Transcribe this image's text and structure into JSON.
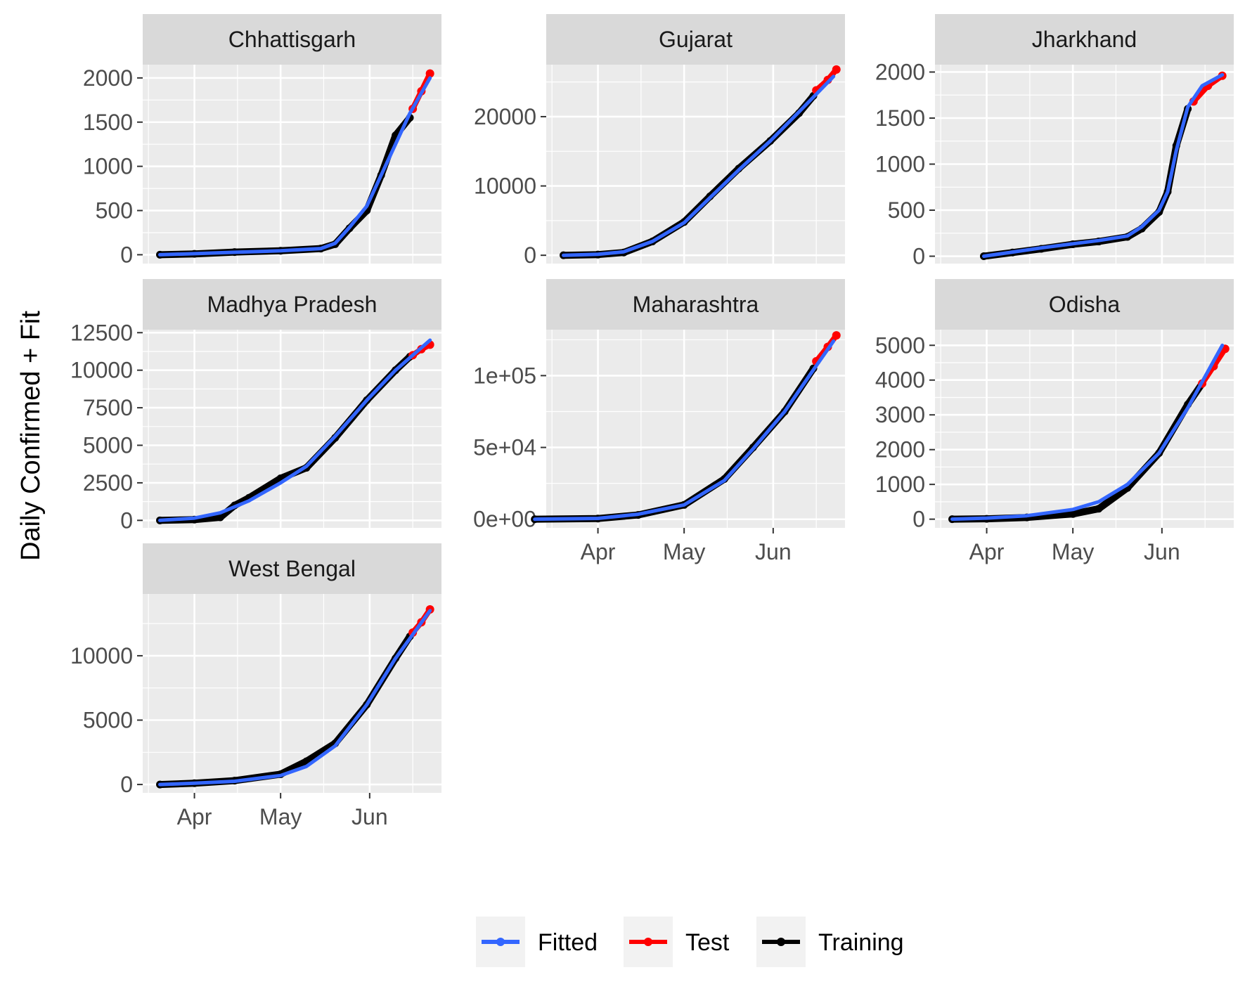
{
  "chart_data": {
    "type": "line",
    "ylabel": "Daily Confirmed + Fit",
    "xlabel": "",
    "x_axis": "date",
    "x_ticks": [
      "Apr",
      "May",
      "Jun"
    ],
    "x_range": [
      "2020-03-14",
      "2020-06-26"
    ],
    "legend": {
      "placement": "bottom",
      "entries": [
        {
          "name": "Fitted",
          "color": "#3366FF"
        },
        {
          "name": "Test",
          "color": "#FF0000"
        },
        {
          "name": "Training",
          "color": "#000000"
        }
      ]
    },
    "panels": [
      {
        "title": "Chhattisgarh",
        "ylim": [
          -100,
          2150
        ],
        "yticks": [
          0,
          500,
          1000,
          1500,
          2000
        ],
        "ytick_labels": [
          "0",
          "500",
          "1000",
          "1500",
          "2000"
        ],
        "training": [
          [
            "2020-03-20",
            0
          ],
          [
            "2020-04-01",
            10
          ],
          [
            "2020-04-15",
            30
          ],
          [
            "2020-05-01",
            45
          ],
          [
            "2020-05-15",
            70
          ],
          [
            "2020-05-20",
            120
          ],
          [
            "2020-05-25",
            300
          ],
          [
            "2020-05-31",
            500
          ],
          [
            "2020-06-05",
            900
          ],
          [
            "2020-06-10",
            1350
          ],
          [
            "2020-06-15",
            1550
          ]
        ],
        "test": [
          [
            "2020-06-16",
            1650
          ],
          [
            "2020-06-19",
            1850
          ],
          [
            "2020-06-22",
            2050
          ]
        ],
        "fitted": [
          [
            "2020-03-20",
            0
          ],
          [
            "2020-04-01",
            12
          ],
          [
            "2020-04-15",
            28
          ],
          [
            "2020-05-01",
            45
          ],
          [
            "2020-05-15",
            70
          ],
          [
            "2020-05-20",
            130
          ],
          [
            "2020-05-25",
            310
          ],
          [
            "2020-05-31",
            550
          ],
          [
            "2020-06-05",
            900
          ],
          [
            "2020-06-10",
            1250
          ],
          [
            "2020-06-15",
            1600
          ],
          [
            "2020-06-22",
            2000
          ]
        ]
      },
      {
        "title": "Gujarat",
        "ylim": [
          -1200,
          27500
        ],
        "yticks": [
          0,
          10000,
          20000
        ],
        "ytick_labels": [
          "0",
          "10000",
          "20000"
        ],
        "training": [
          [
            "2020-03-20",
            0
          ],
          [
            "2020-04-01",
            100
          ],
          [
            "2020-04-10",
            400
          ],
          [
            "2020-04-20",
            2000
          ],
          [
            "2020-05-01",
            4800
          ],
          [
            "2020-05-10",
            8500
          ],
          [
            "2020-05-20",
            12500
          ],
          [
            "2020-05-31",
            16500
          ],
          [
            "2020-06-10",
            20500
          ],
          [
            "2020-06-15",
            23000
          ]
        ],
        "test": [
          [
            "2020-06-16",
            23800
          ],
          [
            "2020-06-20",
            25300
          ],
          [
            "2020-06-23",
            26800
          ]
        ],
        "fitted": [
          [
            "2020-03-20",
            0
          ],
          [
            "2020-04-01",
            150
          ],
          [
            "2020-04-10",
            500
          ],
          [
            "2020-04-20",
            2000
          ],
          [
            "2020-05-01",
            4700
          ],
          [
            "2020-05-10",
            8300
          ],
          [
            "2020-05-20",
            12300
          ],
          [
            "2020-05-31",
            16500
          ],
          [
            "2020-06-10",
            20700
          ],
          [
            "2020-06-22",
            25800
          ]
        ]
      },
      {
        "title": "Jharkhand",
        "ylim": [
          -80,
          2080
        ],
        "yticks": [
          0,
          500,
          1000,
          1500,
          2000
        ],
        "ytick_labels": [
          "0",
          "500",
          "1000",
          "1500",
          "2000"
        ],
        "training": [
          [
            "2020-03-31",
            0
          ],
          [
            "2020-04-10",
            40
          ],
          [
            "2020-04-20",
            80
          ],
          [
            "2020-05-01",
            130
          ],
          [
            "2020-05-10",
            160
          ],
          [
            "2020-05-20",
            210
          ],
          [
            "2020-05-25",
            300
          ],
          [
            "2020-05-31",
            480
          ],
          [
            "2020-06-03",
            700
          ],
          [
            "2020-06-06",
            1200
          ],
          [
            "2020-06-10",
            1600
          ]
        ],
        "test": [
          [
            "2020-06-12",
            1680
          ],
          [
            "2020-06-17",
            1850
          ],
          [
            "2020-06-22",
            1960
          ]
        ],
        "fitted": [
          [
            "2020-03-31",
            0
          ],
          [
            "2020-04-10",
            45
          ],
          [
            "2020-04-20",
            90
          ],
          [
            "2020-05-01",
            135
          ],
          [
            "2020-05-10",
            170
          ],
          [
            "2020-05-20",
            220
          ],
          [
            "2020-05-25",
            320
          ],
          [
            "2020-05-31",
            500
          ],
          [
            "2020-06-03",
            700
          ],
          [
            "2020-06-06",
            1150
          ],
          [
            "2020-06-10",
            1620
          ],
          [
            "2020-06-15",
            1850
          ],
          [
            "2020-06-22",
            1970
          ]
        ]
      },
      {
        "title": "Madhya Pradesh",
        "ylim": [
          -500,
          12700
        ],
        "yticks": [
          0,
          2500,
          5000,
          7500,
          10000,
          12500
        ],
        "ytick_labels": [
          "0",
          "2500",
          "5000",
          "7500",
          "10000",
          "12500"
        ],
        "training": [
          [
            "2020-03-20",
            0
          ],
          [
            "2020-04-01",
            50
          ],
          [
            "2020-04-10",
            200
          ],
          [
            "2020-04-15",
            1000
          ],
          [
            "2020-04-20",
            1500
          ],
          [
            "2020-05-01",
            2800
          ],
          [
            "2020-05-10",
            3500
          ],
          [
            "2020-05-20",
            5500
          ],
          [
            "2020-05-31",
            8000
          ],
          [
            "2020-06-10",
            10000
          ],
          [
            "2020-06-15",
            10900
          ]
        ],
        "test": [
          [
            "2020-06-16",
            11000
          ],
          [
            "2020-06-19",
            11400
          ],
          [
            "2020-06-22",
            11700
          ]
        ],
        "fitted": [
          [
            "2020-03-20",
            0
          ],
          [
            "2020-04-01",
            150
          ],
          [
            "2020-04-10",
            500
          ],
          [
            "2020-04-20",
            1300
          ],
          [
            "2020-05-01",
            2500
          ],
          [
            "2020-05-10",
            3600
          ],
          [
            "2020-05-20",
            5600
          ],
          [
            "2020-05-31",
            8000
          ],
          [
            "2020-06-10",
            10000
          ],
          [
            "2020-06-22",
            12000
          ]
        ]
      },
      {
        "title": "Maharashtra",
        "ylim": [
          -6000,
          132000
        ],
        "yticks": [
          0,
          50000,
          100000
        ],
        "ytick_labels": [
          "0e+00",
          "5e+04",
          "1e+05"
        ],
        "training": [
          [
            "2020-03-10",
            0
          ],
          [
            "2020-04-01",
            500
          ],
          [
            "2020-04-15",
            3000
          ],
          [
            "2020-05-01",
            10000
          ],
          [
            "2020-05-15",
            28000
          ],
          [
            "2020-05-25",
            50000
          ],
          [
            "2020-06-05",
            75000
          ],
          [
            "2020-06-15",
            105000
          ]
        ],
        "test": [
          [
            "2020-06-16",
            110000
          ],
          [
            "2020-06-20",
            120000
          ],
          [
            "2020-06-23",
            128000
          ]
        ],
        "fitted": [
          [
            "2020-03-10",
            0
          ],
          [
            "2020-04-01",
            600
          ],
          [
            "2020-04-15",
            3500
          ],
          [
            "2020-05-01",
            10000
          ],
          [
            "2020-05-15",
            27000
          ],
          [
            "2020-05-25",
            49000
          ],
          [
            "2020-06-05",
            75000
          ],
          [
            "2020-06-15",
            104000
          ],
          [
            "2020-06-22",
            124000
          ]
        ]
      },
      {
        "title": "Odisha",
        "ylim": [
          -250,
          5450
        ],
        "yticks": [
          0,
          1000,
          2000,
          3000,
          4000,
          5000
        ],
        "ytick_labels": [
          "0",
          "1000",
          "2000",
          "3000",
          "4000",
          "5000"
        ],
        "training": [
          [
            "2020-03-20",
            0
          ],
          [
            "2020-04-01",
            10
          ],
          [
            "2020-04-15",
            50
          ],
          [
            "2020-05-01",
            150
          ],
          [
            "2020-05-10",
            300
          ],
          [
            "2020-05-20",
            900
          ],
          [
            "2020-05-31",
            1900
          ],
          [
            "2020-06-10",
            3300
          ],
          [
            "2020-06-15",
            3900
          ]
        ],
        "test": [
          [
            "2020-06-15",
            3900
          ],
          [
            "2020-06-19",
            4400
          ],
          [
            "2020-06-23",
            4900
          ]
        ],
        "fitted": [
          [
            "2020-03-20",
            0
          ],
          [
            "2020-04-01",
            30
          ],
          [
            "2020-04-15",
            100
          ],
          [
            "2020-05-01",
            280
          ],
          [
            "2020-05-10",
            500
          ],
          [
            "2020-05-20",
            1000
          ],
          [
            "2020-05-31",
            1900
          ],
          [
            "2020-06-10",
            3200
          ],
          [
            "2020-06-22",
            5000
          ]
        ]
      },
      {
        "title": "West Bengal",
        "ylim": [
          -650,
          14800
        ],
        "yticks": [
          0,
          5000,
          10000
        ],
        "ytick_labels": [
          "0",
          "5000",
          "10000"
        ],
        "training": [
          [
            "2020-03-20",
            0
          ],
          [
            "2020-04-01",
            100
          ],
          [
            "2020-04-15",
            300
          ],
          [
            "2020-05-01",
            800
          ],
          [
            "2020-05-10",
            1800
          ],
          [
            "2020-05-20",
            3200
          ],
          [
            "2020-05-31",
            6200
          ],
          [
            "2020-06-10",
            9800
          ],
          [
            "2020-06-15",
            11500
          ]
        ],
        "test": [
          [
            "2020-06-16",
            11800
          ],
          [
            "2020-06-19",
            12600
          ],
          [
            "2020-06-22",
            13600
          ]
        ],
        "fitted": [
          [
            "2020-03-20",
            0
          ],
          [
            "2020-04-01",
            100
          ],
          [
            "2020-04-15",
            250
          ],
          [
            "2020-05-01",
            700
          ],
          [
            "2020-05-10",
            1400
          ],
          [
            "2020-05-20",
            3000
          ],
          [
            "2020-05-31",
            6200
          ],
          [
            "2020-06-10",
            9800
          ],
          [
            "2020-06-22",
            13500
          ]
        ]
      }
    ]
  }
}
